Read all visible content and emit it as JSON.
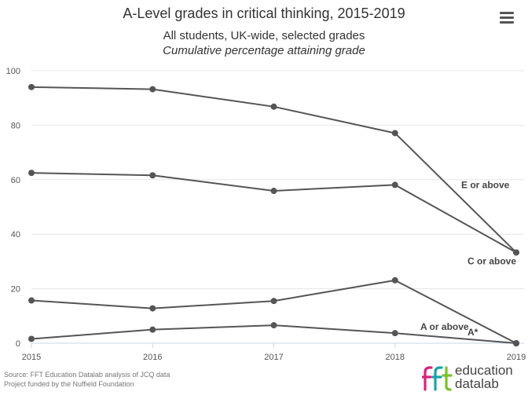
{
  "header": {
    "title": "A-Level grades in critical thinking, 2015-2019",
    "subtitle": "All students, UK-wide, selected grades",
    "subtitle2": "Cumulative percentage attaining grade"
  },
  "menu": {
    "icon": "hamburger-menu-icon"
  },
  "chart_data": {
    "type": "line",
    "title": "A-Level grades in critical thinking, 2015-2019",
    "subtitle": "All students, UK-wide, selected grades",
    "ylabel": "Cumulative percentage attaining grade",
    "xlabel": "",
    "x": [
      2015,
      2016,
      2017,
      2018,
      2019
    ],
    "ylim": [
      0,
      100
    ],
    "yticks": [
      0,
      20,
      40,
      60,
      80,
      100
    ],
    "grid": "horizontal",
    "series_color": "#555555",
    "series": [
      {
        "name": "E or above",
        "values": [
          94,
          93.2,
          86.8,
          77.1,
          33.3
        ]
      },
      {
        "name": "C or above",
        "values": [
          62.5,
          61.6,
          55.9,
          58.1,
          33.3
        ]
      },
      {
        "name": "A or above",
        "values": [
          15.7,
          12.8,
          15.5,
          23.1,
          0
        ]
      },
      {
        "name": "A*",
        "values": [
          1.6,
          5,
          6.6,
          3.7,
          0
        ]
      }
    ]
  },
  "footer": {
    "source_line1": "Source: FFT Education Datalab analysis of JCQ data",
    "source_line2": "Project funded by the Nuffield Foundation"
  },
  "logo": {
    "mark_text": "fft",
    "word1": "education",
    "word2": "datalab",
    "colors": {
      "pink": "#d6237a",
      "teal": "#1aa3a3",
      "green": "#7cbf2e"
    }
  }
}
